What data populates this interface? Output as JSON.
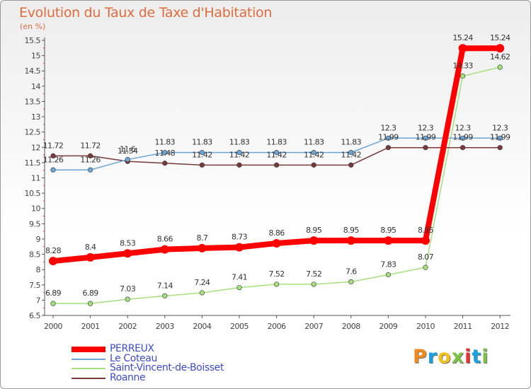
{
  "title": "Evolution du Taux de Taxe d'Habitation",
  "unit": "(en %)",
  "logo": {
    "text": "Proxiti",
    "colors": [
      "#f08a1c",
      "#1aa2e0",
      "#f1c21b",
      "#7cc242",
      "#e6332a",
      "#1aa2e0",
      "#7cc242"
    ]
  },
  "chart_data": {
    "type": "line",
    "categories": [
      "2000",
      "2001",
      "2002",
      "2003",
      "2004",
      "2005",
      "2006",
      "2007",
      "2008",
      "2009",
      "2010",
      "2011",
      "2012"
    ],
    "ylim": [
      6.5,
      15.5
    ],
    "yticks": [
      "6.5",
      "7",
      "7.5",
      "8",
      "8.5",
      "9",
      "9.5",
      "10",
      "10.5",
      "11",
      "11.5",
      "12",
      "12.5",
      "13",
      "13.5",
      "14",
      "14.5",
      "15",
      "15.5"
    ],
    "grid": false,
    "legend_position": "bottom-left",
    "series": [
      {
        "name": "PERREUX",
        "color": "#ff0000",
        "values": [
          8.28,
          8.4,
          8.53,
          8.66,
          8.7,
          8.73,
          8.86,
          8.95,
          8.95,
          8.95,
          8.95,
          15.24,
          15.24
        ],
        "labels": [
          "8.28",
          "8.4",
          "8.53",
          "8.66",
          "8.7",
          "8.73",
          "8.86",
          "8.95",
          "8.95",
          "8.95",
          "8.95",
          "15.24",
          "15.24"
        ]
      },
      {
        "name": "Le Coteau",
        "color": "#6ca6d6",
        "values": [
          11.26,
          11.26,
          11.6,
          11.83,
          11.83,
          11.83,
          11.83,
          11.83,
          11.83,
          12.3,
          12.3,
          12.3,
          12.3
        ],
        "labels": [
          "11.26",
          "11.26",
          "11.6",
          "11.83",
          "11.83",
          "11.83",
          "11.83",
          "11.83",
          "11.83",
          "12.3",
          "12.3",
          "12.3",
          "12.3"
        ]
      },
      {
        "name": "Saint-Vincent-de-Boisset",
        "color": "#a5e07d",
        "values": [
          6.89,
          6.89,
          7.03,
          7.14,
          7.24,
          7.41,
          7.52,
          7.52,
          7.6,
          7.83,
          8.07,
          14.33,
          14.62
        ],
        "labels": [
          "6.89",
          "6.89",
          "7.03",
          "7.14",
          "7.24",
          "7.41",
          "7.52",
          "7.52",
          "7.6",
          "7.83",
          "8.07",
          "14.33",
          "14.62"
        ]
      },
      {
        "name": "Roanne",
        "color": "#7a3a3a",
        "values": [
          11.72,
          11.72,
          11.54,
          11.48,
          11.42,
          11.42,
          11.42,
          11.42,
          11.42,
          11.99,
          11.99,
          11.99,
          11.99
        ],
        "labels": [
          "11.72",
          "11.72",
          "11.54",
          "11.48",
          "11.42",
          "11.42",
          "11.42",
          "11.42",
          "11.42",
          "11.99",
          "11.99",
          "11.99",
          "11.99"
        ]
      }
    ]
  }
}
